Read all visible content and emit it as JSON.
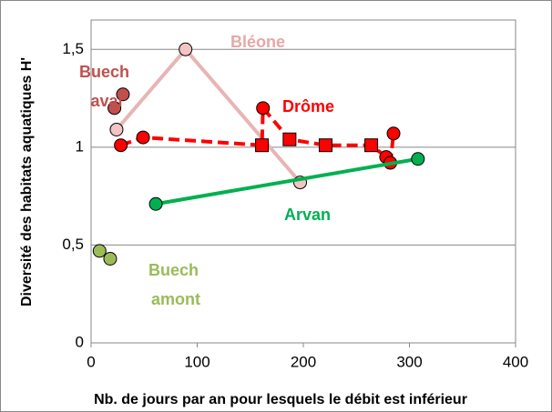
{
  "chart_data": {
    "type": "line",
    "xlabel": "Nb. de jours par an pour lesquels le débit est inférieur",
    "ylabel": "Diversité des habitats aquatiques H'",
    "xlim": [
      0,
      400
    ],
    "xticks": [
      0,
      100,
      200,
      300,
      400
    ],
    "ylim": [
      0,
      1.65
    ],
    "yticks": [
      0,
      {
        "value": 0.5,
        "label": "0,5"
      },
      1,
      {
        "value": 1.5,
        "label": "1,5"
      }
    ],
    "grid": true,
    "series": [
      {
        "name": "Bléone",
        "color": "#e8b4b4",
        "marker_color": "#f2c4c4",
        "label_color": "#e6a8a8",
        "line": true,
        "dashed": false,
        "x": [
          24,
          89,
          197
        ],
        "values": [
          1.09,
          1.5,
          0.82
        ]
      },
      {
        "name": "Buech aval",
        "color": "#c0504d",
        "marker_color": "#c0504d",
        "label_color": "#c0504d",
        "line": false,
        "dashed": false,
        "x": [
          22,
          30
        ],
        "values": [
          1.2,
          1.27
        ]
      },
      {
        "name": "Drôme",
        "color": "#ff0000",
        "marker_color": "#ff0000",
        "label_color": "#ff0000",
        "line": true,
        "dashed": true,
        "markers": [
          "circle",
          "circle",
          "square",
          "circle",
          "square",
          "square",
          "square",
          "circle",
          "circle",
          "circle"
        ],
        "x": [
          28,
          49,
          161,
          162,
          187,
          221,
          264,
          278,
          282,
          285
        ],
        "values": [
          1.01,
          1.05,
          1.01,
          1.2,
          1.04,
          1.01,
          1.01,
          0.95,
          0.92,
          1.07
        ]
      },
      {
        "name": "Arvan",
        "color": "#00b050",
        "marker_color": "#00b050",
        "label_color": "#00b050",
        "line": true,
        "dashed": false,
        "x": [
          61,
          308
        ],
        "values": [
          0.71,
          0.94
        ]
      },
      {
        "name": "Buech amont",
        "color": "#9bbb59",
        "marker_color": "#9bbb59",
        "label_color": "#9bbb59",
        "line": false,
        "dashed": false,
        "x": [
          8,
          18
        ],
        "values": [
          0.47,
          0.43
        ]
      }
    ]
  }
}
